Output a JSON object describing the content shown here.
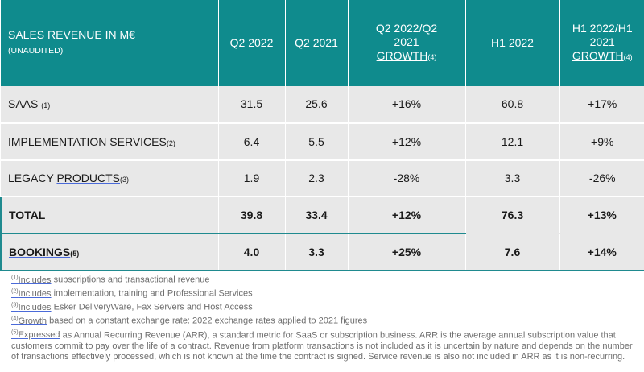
{
  "header": {
    "title": "SALES REVENUE IN M€",
    "subtitle": "(UNAUDITED)",
    "columns": [
      {
        "line1": "Q2 2022",
        "line2": "",
        "line3": "",
        "note": ""
      },
      {
        "line1": "Q2 2021",
        "line2": "",
        "line3": "",
        "note": ""
      },
      {
        "line1": "Q2 2022/Q2",
        "line2": "2021",
        "line3": "GROWTH",
        "note": "(4)"
      },
      {
        "line1": "H1 2022",
        "line2": "",
        "line3": "",
        "note": ""
      },
      {
        "line1": "H1 2022/H1",
        "line2": "2021",
        "line3": "GROWTH",
        "note": "(4)"
      }
    ]
  },
  "rows": [
    {
      "label_a": "SAAS",
      "label_b": "",
      "note": "(1)",
      "values": [
        "31.5",
        "25.6",
        "+16%",
        "60.8",
        "+17%"
      ]
    },
    {
      "label_a": "IMPLEMENTATION ",
      "label_b": "SERVICES",
      "note": "(2)",
      "values": [
        "6.4",
        "5.5",
        "+12%",
        "12.1",
        "+9%"
      ]
    },
    {
      "label_a": "LEGACY ",
      "label_b": "PRODUCTS",
      "note": "(3)",
      "values": [
        "1.9",
        "2.3",
        "-28%",
        "3.3",
        "-26%"
      ]
    }
  ],
  "total": {
    "label": "TOTAL",
    "values": [
      "39.8",
      "33.4",
      "+12%",
      "76.3",
      "+13%"
    ]
  },
  "bookings": {
    "label": "BOOKINGS",
    "note": "(5)",
    "values": [
      "4.0",
      "3.3",
      "+25%",
      "7.6",
      "+14%"
    ]
  },
  "footnotes": [
    {
      "num": "(1)",
      "ref": "Includes",
      "text": " subscriptions and transactional revenue"
    },
    {
      "num": "(2)",
      "ref": "Includes",
      "text": " implementation, training and Professional Services"
    },
    {
      "num": "(3)",
      "ref": "Includes",
      "text": " Esker DeliveryWare, Fax Servers and Host Access"
    },
    {
      "num": "(4)",
      "ref": "Growth",
      "text": " based on a constant exchange rate: 2022 exchange rates applied to 2021 figures"
    },
    {
      "num": "(5)",
      "ref": "Expressed",
      "text": " as Annual Recurring Revenue (ARR), a standard metric for SaaS or subscription business. ARR is the average annual subscription value that customers commit to pay over the life of a contract. Revenue from platform transactions is not included as it is uncertain by nature and depends on the number of transactions effectively processed, which is not known at the time the contract is signed. Service revenue is also not included in ARR as it is non-recurring."
    }
  ]
}
